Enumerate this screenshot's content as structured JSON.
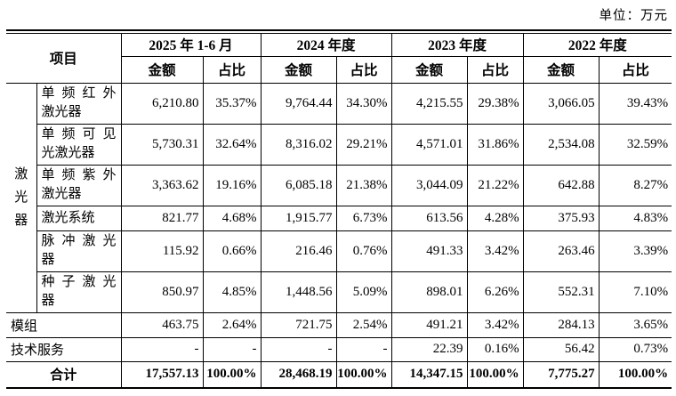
{
  "unit_label": "单位：万元",
  "table": {
    "corner_header": "项目",
    "col_groups": [
      {
        "label": "2025 年 1-6 月"
      },
      {
        "label": "2024 年度"
      },
      {
        "label": "2023 年度"
      },
      {
        "label": "2022 年度"
      }
    ],
    "sub_headers": [
      "金额",
      "占比"
    ],
    "group_row_label": "激光器",
    "rows": [
      {
        "label_lines": [
          "单频红外",
          "激光器"
        ],
        "values": [
          "6,210.80",
          "35.37%",
          "9,764.44",
          "34.30%",
          "4,215.55",
          "29.38%",
          "3,066.05",
          "39.43%"
        ]
      },
      {
        "label_lines": [
          "单频可见",
          "光激光器"
        ],
        "values": [
          "5,730.31",
          "32.64%",
          "8,316.02",
          "29.21%",
          "4,571.01",
          "31.86%",
          "2,534.08",
          "32.59%"
        ]
      },
      {
        "label_lines": [
          "单频紫外",
          "激光器"
        ],
        "values": [
          "3,363.62",
          "19.16%",
          "6,085.18",
          "21.38%",
          "3,044.09",
          "21.22%",
          "642.88",
          "8.27%"
        ]
      },
      {
        "label_lines": [
          "激光系统"
        ],
        "values": [
          "821.77",
          "4.68%",
          "1,915.77",
          "6.73%",
          "613.56",
          "4.28%",
          "375.93",
          "4.83%"
        ]
      },
      {
        "label_lines": [
          "脉冲激光",
          "器"
        ],
        "values": [
          "115.92",
          "0.66%",
          "216.46",
          "0.76%",
          "491.33",
          "3.42%",
          "263.46",
          "3.39%"
        ]
      },
      {
        "label_lines": [
          "种子激光",
          "器"
        ],
        "values": [
          "850.97",
          "4.85%",
          "1,448.56",
          "5.09%",
          "898.01",
          "6.26%",
          "552.31",
          "7.10%"
        ]
      }
    ],
    "flat_rows": [
      {
        "label": "模组",
        "values": [
          "463.75",
          "2.64%",
          "721.75",
          "2.54%",
          "491.21",
          "3.42%",
          "284.13",
          "3.65%"
        ]
      },
      {
        "label": "技术服务",
        "values": [
          "-",
          "-",
          "-",
          "-",
          "22.39",
          "0.16%",
          "56.42",
          "0.73%"
        ]
      }
    ],
    "total_row": {
      "label": "合计",
      "values": [
        "17,557.13",
        "100.00%",
        "28,468.19",
        "100.00%",
        "14,347.15",
        "100.00%",
        "7,775.27",
        "100.00%"
      ]
    }
  }
}
